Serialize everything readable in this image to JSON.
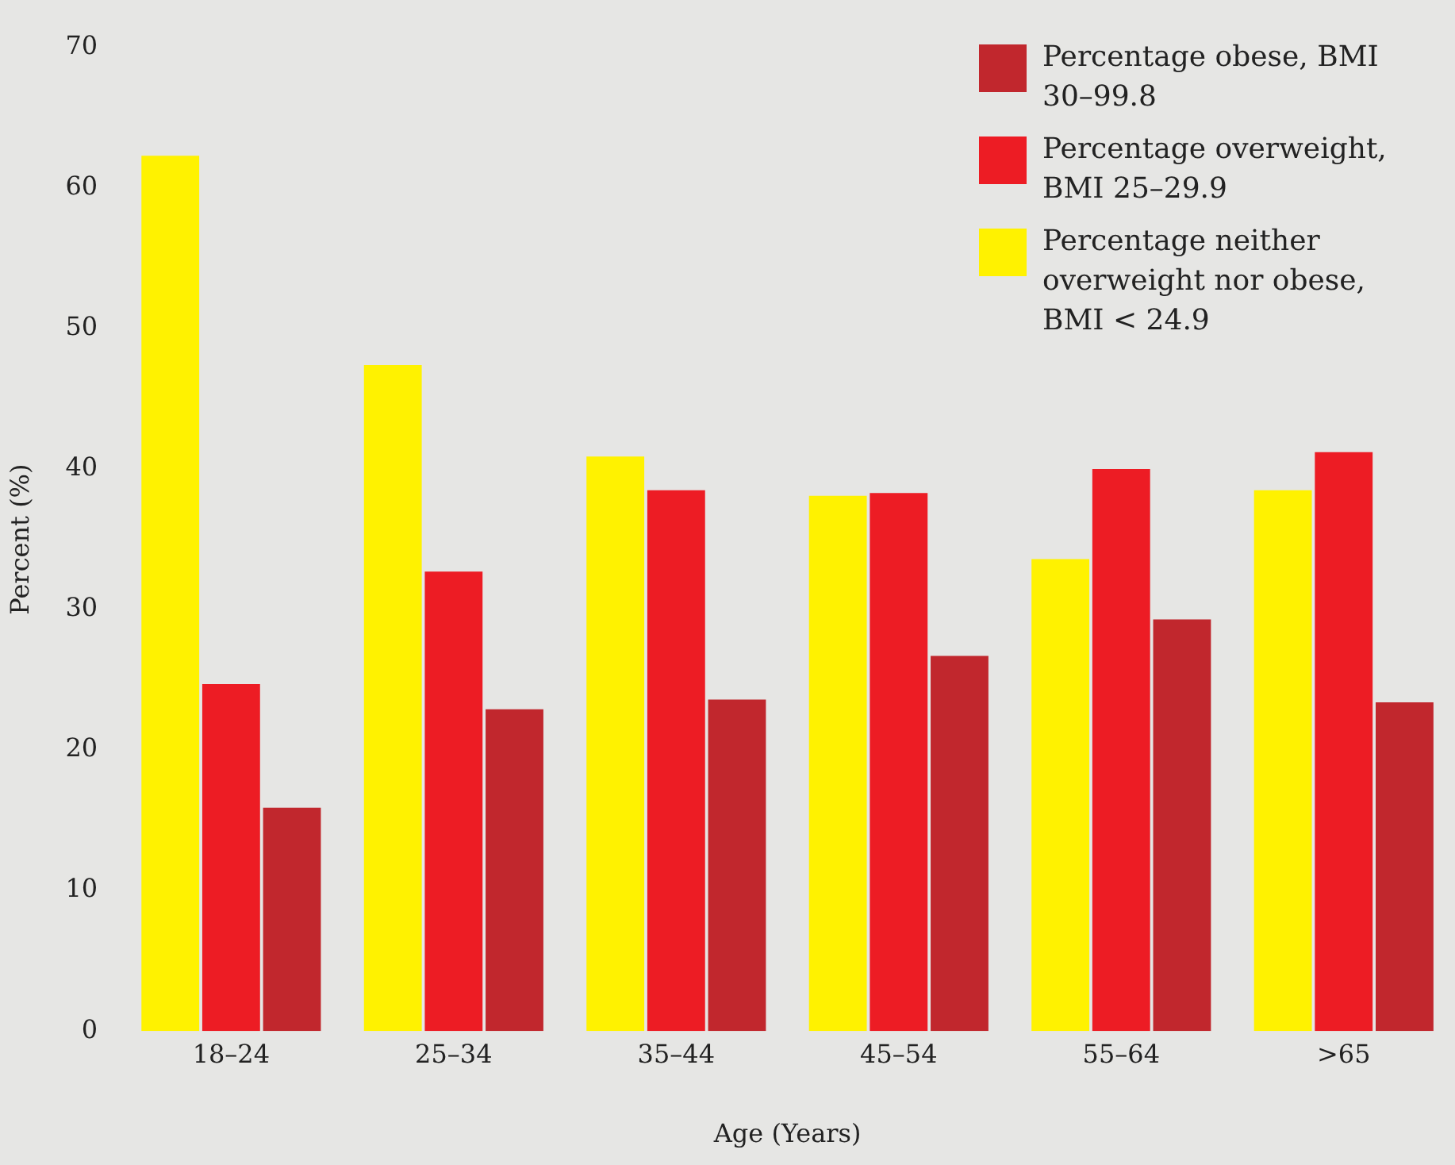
{
  "chart_data": {
    "type": "bar",
    "xlabel": "Age (Years)",
    "ylabel": "Percent (%)",
    "categories": [
      "18–24",
      "25–34",
      "35–44",
      "45–54",
      "55–64",
      ">65"
    ],
    "series": [
      {
        "name": "Percentage neither overweight nor obese, BMI < 24.9",
        "color": "#fff200",
        "values": [
          62.3,
          47.4,
          40.9,
          38.1,
          33.6,
          38.5
        ]
      },
      {
        "name": "Percentage overweight, BMI 25–29.9",
        "color": "#ed1c24",
        "values": [
          24.7,
          32.7,
          38.5,
          38.3,
          40.0,
          41.2
        ]
      },
      {
        "name": "Percentage obese, BMI 30–99.8",
        "color": "#c1272d",
        "values": [
          15.9,
          22.9,
          23.6,
          26.7,
          29.3,
          23.4
        ]
      }
    ],
    "ylim": [
      0,
      70
    ],
    "yticks": [
      0,
      10,
      20,
      30,
      40,
      50,
      60,
      70
    ],
    "grid": false,
    "legend": "top right"
  }
}
